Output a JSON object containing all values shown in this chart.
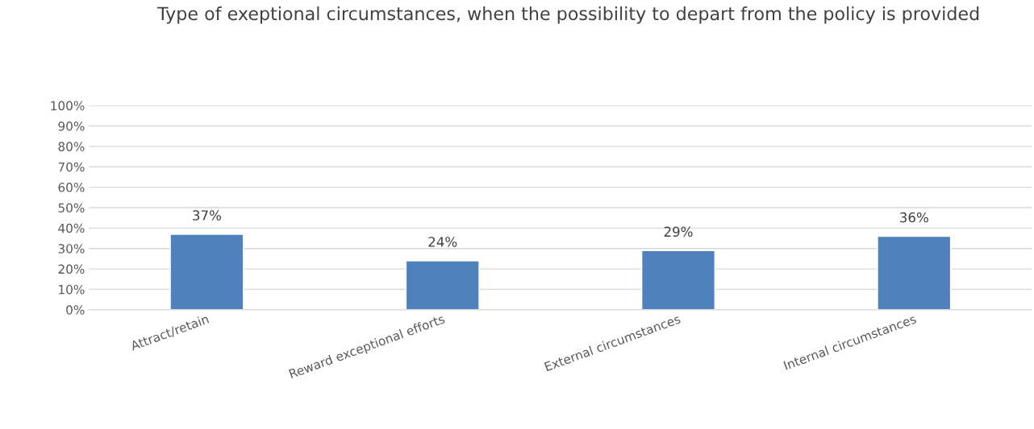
{
  "chart_data": {
    "type": "bar",
    "title": "Type of exeptional circumstances, when the possibility to depart from the policy is provided",
    "categories": [
      "Attract/retain",
      "Reward exceptional efforts",
      "External circumstances",
      "Internal circumstances"
    ],
    "values": [
      37,
      24,
      29,
      36
    ],
    "color": "#4f81bd",
    "value_labels": [
      "37%",
      "24%",
      "29%",
      "36%"
    ],
    "ylim": [
      0,
      100
    ],
    "yticks": [
      {
        "value": 0,
        "label": "0%"
      },
      {
        "value": 10,
        "label": "10%"
      },
      {
        "value": 20,
        "label": "20%"
      },
      {
        "value": 30,
        "label": "30%"
      },
      {
        "value": 40,
        "label": "40%"
      },
      {
        "value": 50,
        "label": "50%"
      },
      {
        "value": 60,
        "label": "60%"
      },
      {
        "value": 70,
        "label": "70%"
      },
      {
        "value": 80,
        "label": "80%"
      },
      {
        "value": 90,
        "label": "90%"
      },
      {
        "value": 100,
        "label": "100%"
      }
    ],
    "grid": "y",
    "legend": false
  }
}
